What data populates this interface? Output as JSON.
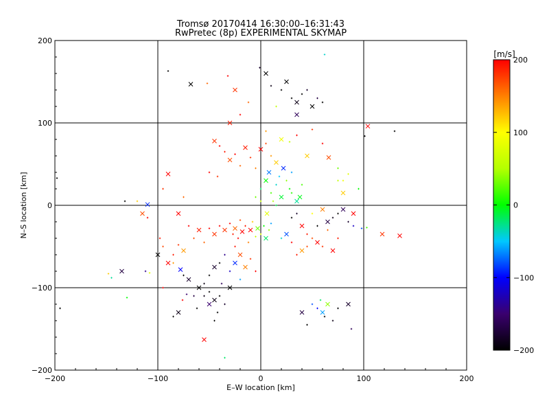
{
  "chart_data": {
    "type": "scatter",
    "title": "Tromsø 20170414 16:30:00–16:31:43",
    "subtitle": "RwPretec (8p) EXPERIMENTAL SKYMAP",
    "xlabel": "E–W location [km]",
    "ylabel": "N–S location [km]",
    "xlim": [
      -200,
      200
    ],
    "ylim": [
      -200,
      200
    ],
    "xticks": [
      -200,
      -100,
      0,
      100,
      200
    ],
    "yticks": [
      -200,
      -100,
      0,
      100,
      200
    ],
    "grid": true,
    "colorbar": {
      "unit_label": "[m/s]",
      "min": -200,
      "max": 200,
      "ticks": [
        200,
        100,
        0,
        -100,
        -200
      ],
      "placement": "right"
    },
    "marker_types": [
      "x (large)",
      "+ (small dot)"
    ],
    "points": [
      [
        -45,
        78,
        180
      ],
      [
        -40,
        72,
        200
      ],
      [
        -35,
        65,
        190
      ],
      [
        -30,
        55,
        170
      ],
      [
        -25,
        62,
        200
      ],
      [
        -20,
        48,
        160
      ],
      [
        -15,
        70,
        190
      ],
      [
        -10,
        58,
        180
      ],
      [
        -5,
        45,
        150
      ],
      [
        0,
        68,
        200
      ],
      [
        5,
        75,
        170
      ],
      [
        10,
        60,
        140
      ],
      [
        15,
        52,
        120
      ],
      [
        -50,
        40,
        200
      ],
      [
        -42,
        35,
        180
      ],
      [
        -30,
        100,
        190
      ],
      [
        -20,
        110,
        200
      ],
      [
        -32,
        157,
        200
      ],
      [
        -25,
        140,
        180
      ],
      [
        -12,
        125,
        160
      ],
      [
        5,
        90,
        140
      ],
      [
        20,
        80,
        90
      ],
      [
        28,
        77,
        60
      ],
      [
        35,
        85,
        200
      ],
      [
        45,
        60,
        120
      ],
      [
        50,
        92,
        180
      ],
      [
        60,
        75,
        200
      ],
      [
        66,
        58,
        170
      ],
      [
        75,
        45,
        30
      ],
      [
        80,
        30,
        90
      ],
      [
        -90,
        38,
        200
      ],
      [
        -95,
        20,
        180
      ],
      [
        -75,
        10,
        160
      ],
      [
        -80,
        -10,
        200
      ],
      [
        -98,
        -40,
        190
      ],
      [
        -110,
        -15,
        200
      ],
      [
        -115,
        -10,
        170
      ],
      [
        -120,
        5,
        120
      ],
      [
        -40,
        -25,
        200
      ],
      [
        -35,
        -30,
        180
      ],
      [
        -30,
        -22,
        200
      ],
      [
        -27,
        -35,
        190
      ],
      [
        -25,
        -28,
        160
      ],
      [
        -22,
        -40,
        200
      ],
      [
        -20,
        -18,
        170
      ],
      [
        -18,
        -32,
        200
      ],
      [
        -15,
        -25,
        190
      ],
      [
        -12,
        -45,
        150
      ],
      [
        -10,
        -30,
        200
      ],
      [
        -8,
        -20,
        120
      ],
      [
        -5,
        -38,
        60
      ],
      [
        -3,
        -28,
        30
      ],
      [
        0,
        -35,
        80
      ],
      [
        3,
        -25,
        0
      ],
      [
        5,
        -40,
        -20
      ],
      [
        8,
        -30,
        40
      ],
      [
        10,
        -22,
        -60
      ],
      [
        -45,
        -35,
        180
      ],
      [
        -50,
        -28,
        200
      ],
      [
        -55,
        -45,
        160
      ],
      [
        -60,
        -30,
        190
      ],
      [
        -65,
        -40,
        170
      ],
      [
        -70,
        -25,
        200
      ],
      [
        -75,
        -55,
        140
      ],
      [
        -80,
        -48,
        180
      ],
      [
        -85,
        -60,
        190
      ],
      [
        -90,
        -70,
        200
      ],
      [
        -95,
        -50,
        170
      ],
      [
        -40,
        -70,
        -200
      ],
      [
        -45,
        -75,
        -180
      ],
      [
        -50,
        -85,
        -200
      ],
      [
        -55,
        -95,
        -190
      ],
      [
        -60,
        -100,
        -200
      ],
      [
        -65,
        -110,
        -170
      ],
      [
        -50,
        -105,
        -200
      ],
      [
        -45,
        -115,
        -190
      ],
      [
        -40,
        -110,
        -200
      ],
      [
        -35,
        -120,
        -180
      ],
      [
        -30,
        -100,
        -200
      ],
      [
        -38,
        -95,
        -160
      ],
      [
        -42,
        -130,
        -200
      ],
      [
        -50,
        -120,
        -150
      ],
      [
        -55,
        -110,
        -190
      ],
      [
        -62,
        -125,
        -200
      ],
      [
        -70,
        -90,
        -180
      ],
      [
        -75,
        -85,
        -200
      ],
      [
        -85,
        -135,
        -200
      ],
      [
        -80,
        -130,
        -190
      ],
      [
        -45,
        -140,
        -200
      ],
      [
        -30,
        -80,
        -120
      ],
      [
        -25,
        -70,
        -90
      ],
      [
        -20,
        -90,
        -60
      ],
      [
        -35,
        -60,
        -140
      ],
      [
        -15,
        -75,
        150
      ],
      [
        -10,
        -65,
        180
      ],
      [
        -5,
        -80,
        200
      ],
      [
        -20,
        -60,
        170
      ],
      [
        -25,
        -50,
        190
      ],
      [
        0,
        20,
        -20
      ],
      [
        5,
        30,
        0
      ],
      [
        10,
        15,
        20
      ],
      [
        15,
        25,
        -40
      ],
      [
        20,
        10,
        -10
      ],
      [
        25,
        30,
        40
      ],
      [
        30,
        15,
        10
      ],
      [
        35,
        5,
        -30
      ],
      [
        12,
        5,
        50
      ],
      [
        18,
        35,
        -50
      ],
      [
        8,
        40,
        -70
      ],
      [
        -5,
        10,
        30
      ],
      [
        0,
        5,
        60
      ],
      [
        22,
        45,
        -90
      ],
      [
        28,
        20,
        0
      ],
      [
        15,
        0,
        -15
      ],
      [
        6,
        -10,
        80
      ],
      [
        30,
        40,
        -60
      ],
      [
        40,
        25,
        20
      ],
      [
        38,
        10,
        -5
      ],
      [
        30,
        -15,
        -200
      ],
      [
        35,
        -10,
        -180
      ],
      [
        40,
        -25,
        200
      ],
      [
        45,
        -35,
        190
      ],
      [
        50,
        -40,
        170
      ],
      [
        55,
        -45,
        200
      ],
      [
        60,
        -50,
        180
      ],
      [
        65,
        -30,
        160
      ],
      [
        70,
        -55,
        200
      ],
      [
        75,
        -40,
        190
      ],
      [
        55,
        -25,
        -200
      ],
      [
        65,
        -20,
        -170
      ],
      [
        70,
        -15,
        -190
      ],
      [
        75,
        -10,
        -200
      ],
      [
        80,
        -5,
        -160
      ],
      [
        85,
        -20,
        -180
      ],
      [
        90,
        -25,
        -120
      ],
      [
        60,
        -5,
        150
      ],
      [
        50,
        -10,
        100
      ],
      [
        45,
        -50,
        170
      ],
      [
        40,
        -55,
        140
      ],
      [
        35,
        -60,
        190
      ],
      [
        30,
        -45,
        200
      ],
      [
        25,
        -35,
        -80
      ],
      [
        20,
        -40,
        -40
      ],
      [
        30,
        130,
        -200
      ],
      [
        35,
        125,
        -190
      ],
      [
        40,
        135,
        -200
      ],
      [
        45,
        140,
        -180
      ],
      [
        50,
        120,
        -200
      ],
      [
        55,
        130,
        -170
      ],
      [
        60,
        125,
        -200
      ],
      [
        35,
        110,
        -160
      ],
      [
        20,
        140,
        -200
      ],
      [
        10,
        145,
        -190
      ],
      [
        5,
        160,
        -200
      ],
      [
        -1,
        167,
        -180
      ],
      [
        15,
        120,
        60
      ],
      [
        25,
        150,
        -200
      ],
      [
        50,
        -120,
        -80
      ],
      [
        55,
        -125,
        -100
      ],
      [
        60,
        -130,
        -60
      ],
      [
        58,
        -115,
        -20
      ],
      [
        62,
        -135,
        -200
      ],
      [
        65,
        -120,
        40
      ],
      [
        70,
        -140,
        -190
      ],
      [
        75,
        -125,
        -200
      ],
      [
        85,
        -120,
        -180
      ],
      [
        88,
        -150,
        -160
      ],
      [
        45,
        -145,
        -200
      ],
      [
        40,
        -130,
        -170
      ],
      [
        -148,
        -83,
        120
      ],
      [
        -145,
        -88,
        -30
      ],
      [
        -135,
        -80,
        -170
      ],
      [
        -130,
        -112,
        0
      ],
      [
        -132,
        5,
        -200
      ],
      [
        -110,
        1,
        -90
      ],
      [
        -112,
        -80,
        -140
      ],
      [
        -108,
        -82,
        80
      ],
      [
        -100,
        -60,
        -200
      ],
      [
        -95,
        -100,
        200
      ],
      [
        -90,
        163,
        -200
      ],
      [
        -68,
        147,
        -200
      ],
      [
        -52,
        148,
        160
      ],
      [
        -85,
        -70,
        140
      ],
      [
        -78,
        -78,
        -100
      ],
      [
        -72,
        -108,
        -150
      ],
      [
        -76,
        -115,
        200
      ],
      [
        -55,
        -163,
        200
      ],
      [
        -35,
        -185,
        -20
      ],
      [
        62,
        183,
        -40
      ],
      [
        104,
        96,
        200
      ],
      [
        101,
        84,
        -200
      ],
      [
        130,
        90,
        -200
      ],
      [
        135,
        -37,
        200
      ],
      [
        103,
        -27,
        20
      ],
      [
        98,
        -28,
        -80
      ],
      [
        118,
        -35,
        180
      ],
      [
        -198,
        33,
        -200
      ],
      [
        -195,
        -125,
        -200
      ],
      [
        90,
        -10,
        200
      ],
      [
        85,
        38,
        80
      ],
      [
        75,
        30,
        60
      ],
      [
        80,
        15,
        120
      ],
      [
        95,
        20,
        0
      ]
    ]
  }
}
